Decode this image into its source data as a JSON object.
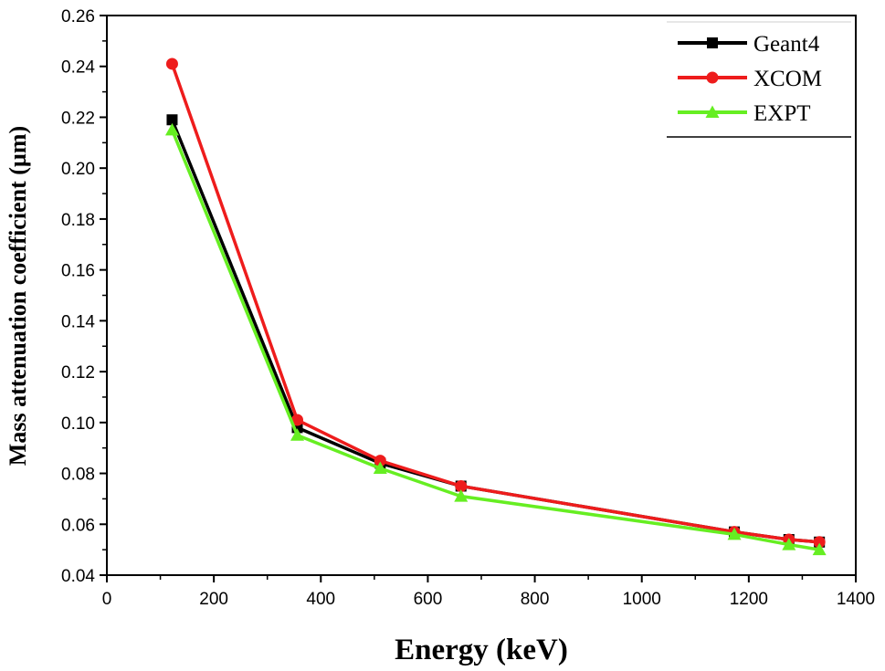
{
  "chart_data": {
    "type": "line",
    "xlabel": "Energy (keV)",
    "ylabel": "Mass attenuation coefficient (µm)",
    "xlim": [
      0,
      1400
    ],
    "ylim": [
      0.04,
      0.26
    ],
    "xticks": [
      0,
      200,
      400,
      600,
      800,
      1000,
      1200,
      1400
    ],
    "yticks": [
      0.04,
      0.06,
      0.08,
      0.1,
      0.12,
      0.14,
      0.16,
      0.18,
      0.2,
      0.22,
      0.24,
      0.26
    ],
    "xtick_labels": [
      "0",
      "200",
      "400",
      "600",
      "800",
      "1000",
      "1200",
      "1400"
    ],
    "ytick_labels": [
      "0.04",
      "0.06",
      "0.08",
      "0.10",
      "0.12",
      "0.14",
      "0.16",
      "0.18",
      "0.20",
      "0.22",
      "0.24",
      "0.26"
    ],
    "grid": false,
    "legend_position": "top-right",
    "x": [
      122,
      356,
      511,
      662,
      1173,
      1275,
      1332
    ],
    "series": [
      {
        "name": "Geant4",
        "color": "#000000",
        "marker": "square",
        "values": [
          0.219,
          0.098,
          0.084,
          0.075,
          0.057,
          0.054,
          0.053
        ]
      },
      {
        "name": "XCOM",
        "color": "#ee1c1c",
        "marker": "circle",
        "values": [
          0.241,
          0.101,
          0.085,
          0.075,
          0.057,
          0.054,
          0.053
        ]
      },
      {
        "name": "EXPT",
        "color": "#66ee22",
        "marker": "triangle",
        "values": [
          0.215,
          0.095,
          0.082,
          0.071,
          0.056,
          0.052,
          0.05
        ]
      }
    ]
  }
}
